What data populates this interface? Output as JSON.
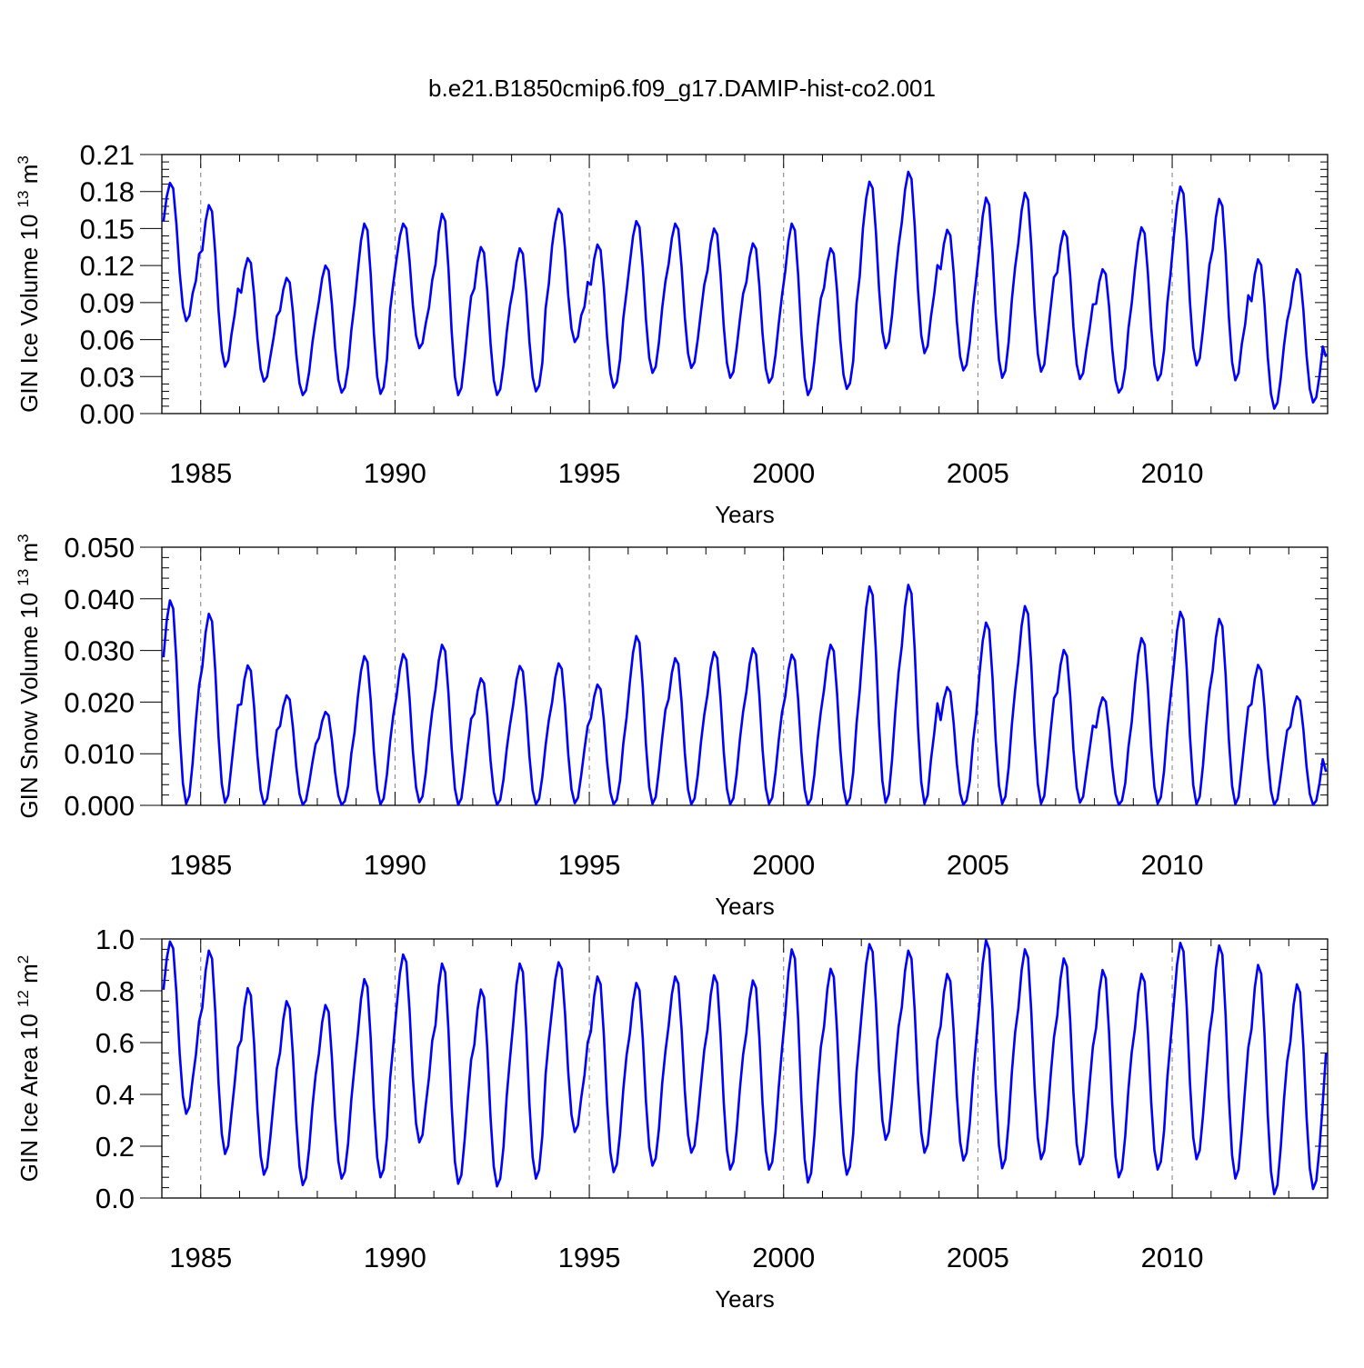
{
  "figure": {
    "title": "b.e21.B1850cmip6.f09_g17.DAMIP-hist-co2.001"
  },
  "colors": {
    "series": "#0000ff",
    "axis": "#000000",
    "grid": "#7f7f7f"
  },
  "chart_data": [
    {
      "type": "line",
      "title": "",
      "xlabel": "Years",
      "ylabel": "GIN Ice Volume 10",
      "ylabel_sup": "13",
      "ylabel_unit": "m",
      "ylabel_unit_sup": "3",
      "xlim": [
        1984.0,
        2014.0
      ],
      "ylim": [
        0.0,
        0.21
      ],
      "xticks": [
        1985,
        1990,
        1995,
        2000,
        2005,
        2010
      ],
      "xtick_labels": [
        "1985",
        "1990",
        "1995",
        "2000",
        "2005",
        "2010"
      ],
      "yticks": [
        0.0,
        0.03,
        0.06,
        0.09,
        0.12,
        0.15,
        0.18,
        0.21
      ],
      "ytick_labels": [
        "0.00",
        "0.03",
        "0.06",
        "0.09",
        "0.12",
        "0.15",
        "0.18",
        "0.21"
      ],
      "grid": "vertical dashed at major x ticks",
      "series": [
        {
          "name": "GIN Ice Volume",
          "frequency": "monthly",
          "start_year": 1984.0417,
          "annual_max": [
            0.187,
            0.169,
            0.126,
            0.11,
            0.12,
            0.154,
            0.154,
            0.162,
            0.135,
            0.134,
            0.166,
            0.137,
            0.156,
            0.154,
            0.15,
            0.138,
            0.154,
            0.134,
            0.188,
            0.196,
            0.149,
            0.175,
            0.179,
            0.148,
            0.117,
            0.151,
            0.184,
            0.174,
            0.125,
            0.117
          ],
          "annual_min": [
            0.075,
            0.038,
            0.026,
            0.015,
            0.017,
            0.016,
            0.053,
            0.015,
            0.015,
            0.018,
            0.058,
            0.021,
            0.033,
            0.037,
            0.029,
            0.025,
            0.015,
            0.02,
            0.053,
            0.049,
            0.035,
            0.029,
            0.034,
            0.028,
            0.017,
            0.027,
            0.039,
            0.027,
            0.004,
            0.009
          ],
          "last_value": 0.046
        }
      ]
    },
    {
      "type": "line",
      "title": "",
      "xlabel": "Years",
      "ylabel": "GIN Snow Volume 10",
      "ylabel_sup": "13",
      "ylabel_unit": "m",
      "ylabel_unit_sup": "3",
      "xlim": [
        1984.0,
        2014.0
      ],
      "ylim": [
        0.0,
        0.05
      ],
      "xticks": [
        1985,
        1990,
        1995,
        2000,
        2005,
        2010
      ],
      "xtick_labels": [
        "1985",
        "1990",
        "1995",
        "2000",
        "2005",
        "2010"
      ],
      "yticks": [
        0.0,
        0.01,
        0.02,
        0.03,
        0.04,
        0.05
      ],
      "ytick_labels": [
        "0.000",
        "0.010",
        "0.020",
        "0.030",
        "0.040",
        "0.050"
      ],
      "grid": "vertical dashed at major x ticks",
      "series": [
        {
          "name": "GIN Snow Volume",
          "frequency": "monthly",
          "start_year": 1984.0417,
          "annual_max": [
            0.0397,
            0.0371,
            0.0271,
            0.0213,
            0.0181,
            0.0289,
            0.0293,
            0.0311,
            0.0246,
            0.027,
            0.0275,
            0.0234,
            0.0328,
            0.0285,
            0.0297,
            0.0304,
            0.0292,
            0.0311,
            0.0424,
            0.0427,
            0.0229,
            0.0354,
            0.0386,
            0.0301,
            0.0209,
            0.0324,
            0.0375,
            0.0361,
            0.0272,
            0.0211
          ],
          "annual_min": [
            0.0003,
            0.0005,
            0.0002,
            0.0001,
            0.0001,
            0.0002,
            0.0006,
            0.0001,
            0.0001,
            0.0002,
            0.0004,
            0.0002,
            0.0003,
            0.0002,
            0.0002,
            0.0003,
            0.0001,
            0.0002,
            0.0005,
            0.0003,
            0.0001,
            0.0003,
            0.0003,
            0.0005,
            0.0001,
            0.0003,
            0.0002,
            0.0002,
            0.0001,
            0.0001
          ],
          "last_value": 0.0065
        }
      ]
    },
    {
      "type": "line",
      "title": "",
      "xlabel": "Years",
      "ylabel": "GIN Ice Area 10",
      "ylabel_sup": "12",
      "ylabel_unit": "m",
      "ylabel_unit_sup": "2",
      "xlim": [
        1984.0,
        2014.0
      ],
      "ylim": [
        0.0,
        1.0
      ],
      "xticks": [
        1985,
        1990,
        1995,
        2000,
        2005,
        2010
      ],
      "xtick_labels": [
        "1985",
        "1990",
        "1995",
        "2000",
        "2005",
        "2010"
      ],
      "yticks": [
        0.0,
        0.2,
        0.4,
        0.6,
        0.8,
        1.0
      ],
      "ytick_labels": [
        "0.0",
        "0.2",
        "0.4",
        "0.6",
        "0.8",
        "1.0"
      ],
      "grid": "vertical dashed at major x ticks",
      "series": [
        {
          "name": "GIN Ice Area",
          "frequency": "monthly",
          "start_year": 1984.0417,
          "annual_max": [
            0.99,
            0.955,
            0.81,
            0.76,
            0.745,
            0.845,
            0.94,
            0.905,
            0.805,
            0.905,
            0.91,
            0.855,
            0.83,
            0.855,
            0.86,
            0.84,
            0.96,
            0.885,
            0.98,
            0.955,
            0.865,
            0.995,
            0.96,
            0.925,
            0.88,
            0.865,
            0.985,
            0.975,
            0.9,
            0.825
          ],
          "annual_min": [
            0.325,
            0.17,
            0.09,
            0.05,
            0.075,
            0.08,
            0.215,
            0.055,
            0.045,
            0.075,
            0.255,
            0.1,
            0.125,
            0.175,
            0.11,
            0.11,
            0.06,
            0.09,
            0.225,
            0.175,
            0.145,
            0.115,
            0.15,
            0.13,
            0.08,
            0.11,
            0.15,
            0.075,
            0.015,
            0.035
          ],
          "last_value": 0.56
        }
      ]
    }
  ]
}
